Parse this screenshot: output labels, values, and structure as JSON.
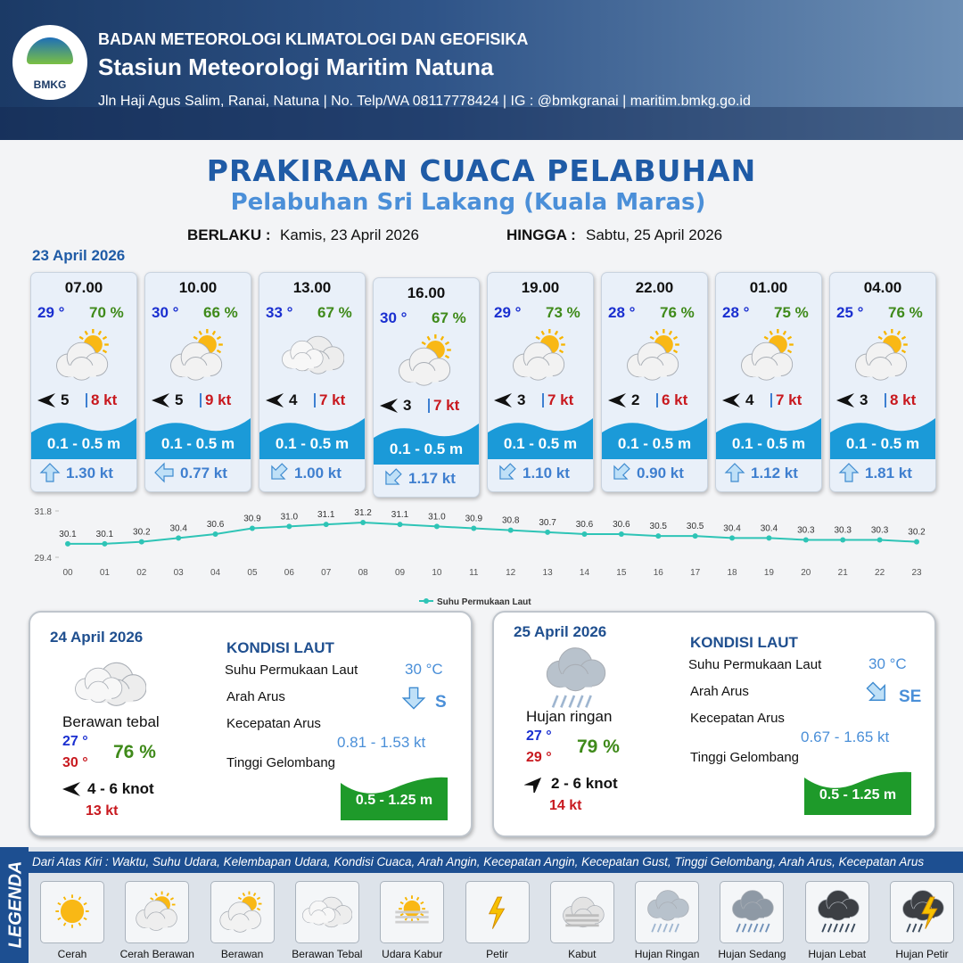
{
  "header": {
    "logo": "BMKG",
    "agency": "BADAN METEOROLOGI KLIMATOLOGI DAN GEOFISIKA",
    "station": "Stasiun Meteorologi Maritim Natuna",
    "address": "Jln Haji Agus Salim, Ranai, Natuna  | No. Telp/WA 08117778424 | IG : @bmkgranai | maritim.bmkg.go.id"
  },
  "title": "PRAKIRAAN CUACA PELABUHAN",
  "subtitle": "Pelabuhan Sri Lakang (Kuala Maras)",
  "valid_from_label": "BERLAKU :",
  "valid_from": "Kamis, 23 April 2026",
  "valid_to_label": "HINGGA :",
  "valid_to": "Sabtu, 25 April 2026",
  "day1_date": "23 April 2026",
  "forecasts": [
    {
      "time": "07.00",
      "temp": "29 °",
      "humidity": "70 %",
      "wind": "5",
      "gust": "8 kt",
      "wave": "0.1 - 0.5 m",
      "current": "1.30 kt"
    },
    {
      "time": "10.00",
      "temp": "30 °",
      "humidity": "66 %",
      "wind": "5",
      "gust": "9 kt",
      "wave": "0.1 - 0.5 m",
      "current": "0.77 kt"
    },
    {
      "time": "13.00",
      "temp": "33 °",
      "humidity": "67 %",
      "wind": "4",
      "gust": "7 kt",
      "wave": "0.1 - 0.5 m",
      "current": "1.00 kt"
    },
    {
      "time": "16.00",
      "temp": "30 °",
      "humidity": "67 %",
      "wind": "3",
      "gust": "7 kt",
      "wave": "0.1 - 0.5 m",
      "current": "1.17 kt"
    },
    {
      "time": "19.00",
      "temp": "29 °",
      "humidity": "73 %",
      "wind": "3",
      "gust": "7 kt",
      "wave": "0.1 - 0.5 m",
      "current": "1.10 kt"
    },
    {
      "time": "22.00",
      "temp": "28 °",
      "humidity": "76 %",
      "wind": "2",
      "gust": "6 kt",
      "wave": "0.1 - 0.5 m",
      "current": "0.90 kt"
    },
    {
      "time": "01.00",
      "temp": "28 °",
      "humidity": "75 %",
      "wind": "4",
      "gust": "7 kt",
      "wave": "0.1 - 0.5 m",
      "current": "1.12 kt"
    },
    {
      "time": "04.00",
      "temp": "25 °",
      "humidity": "76 %",
      "wind": "3",
      "gust": "8 kt",
      "wave": "0.1 - 0.5 m",
      "current": "1.81 kt"
    }
  ],
  "chart_data": {
    "type": "line",
    "categories": [
      "00",
      "01",
      "02",
      "03",
      "04",
      "05",
      "06",
      "07",
      "08",
      "09",
      "10",
      "11",
      "12",
      "13",
      "14",
      "15",
      "16",
      "17",
      "18",
      "19",
      "20",
      "21",
      "22",
      "23"
    ],
    "series": [
      {
        "name": "Suhu Permukaan Laut",
        "color": "#2ec4b6",
        "values": [
          30.1,
          30.1,
          30.2,
          30.4,
          30.6,
          30.9,
          31.0,
          31.1,
          31.2,
          31.1,
          31.0,
          30.9,
          30.8,
          30.7,
          30.6,
          30.6,
          30.5,
          30.5,
          30.4,
          30.4,
          30.3,
          30.3,
          30.3,
          30.2
        ],
        "value_labels": [
          "30.1",
          "30.1",
          "30.2",
          "30.4",
          "30.6",
          "30.9",
          "31.0",
          "31.1",
          "31.2",
          "31.1",
          "31.0",
          "30.9",
          "30.8",
          "30.7",
          "30.6",
          "30.6",
          "30.5",
          "30.5",
          "30.4",
          "30.4",
          "30.3",
          "30.3",
          "30.3",
          "30.2"
        ]
      }
    ],
    "ylim": [
      29.4,
      31.8
    ],
    "yticks": [
      29.4,
      31.8
    ],
    "legend": "bottom"
  },
  "days": [
    {
      "date": "24 April 2026",
      "condition": "Berawan tebal",
      "temp_min": "27 °",
      "temp_max": "30 °",
      "humidity": "76 %",
      "wind": "4  - 6 knot",
      "gust": "13 kt",
      "sea_heading": "KONDISI LAUT",
      "sst_label": "Suhu Permukaan Laut",
      "sst": "30 °C",
      "current_dir_label": "Arah Arus",
      "current_dir": "S",
      "current_speed_label": "Kecepatan Arus",
      "current_speed": "0.81 - 1.53 kt",
      "wave_label": "Tinggi Gelombang",
      "wave": "0.5 - 1.25 m"
    },
    {
      "date": "25 April 2026",
      "condition": "Hujan ringan",
      "temp_min": "27 °",
      "temp_max": "29 °",
      "humidity": "79 %",
      "wind": "2  - 6 knot",
      "gust": "14 kt",
      "sea_heading": "KONDISI LAUT",
      "sst_label": "Suhu Permukaan Laut",
      "sst": "30 °C",
      "current_dir_label": "Arah Arus",
      "current_dir": "SE",
      "current_speed_label": "Kecepatan Arus",
      "current_speed": "0.67 - 1.65 kt",
      "wave_label": "Tinggi Gelombang",
      "wave": "0.5 - 1.25 m"
    }
  ],
  "legend": {
    "title": "LEGENDA",
    "note": "Dari Atas Kiri : Waktu, Suhu Udara, Kelembapan Udara, Kondisi Cuaca, Arah Angin, Kecepatan Angin, Kecepatan Gust, Tinggi Gelombang, Arah Arus, Kecepatan Arus",
    "items": [
      "Cerah",
      "Cerah Berawan",
      "Berawan",
      "Berawan Tebal",
      "Udara Kabur",
      "Petir",
      "Kabut",
      "Hujan Ringan",
      "Hujan Sedang",
      "Hujan Lebat",
      "Hujan Petir"
    ]
  }
}
